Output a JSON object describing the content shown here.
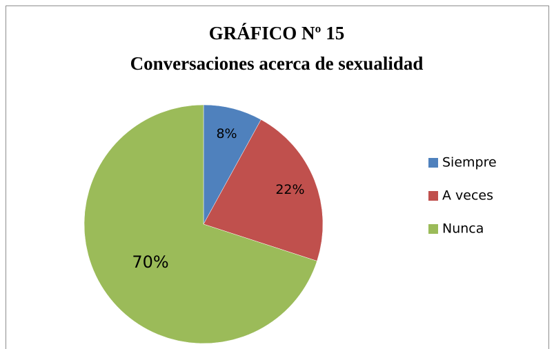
{
  "chart_data": {
    "type": "pie",
    "title": "GRÁFICO Nº 15",
    "subtitle": "Conversaciones acerca de sexualidad",
    "categories": [
      "Siempre",
      "A veces",
      "Nunca"
    ],
    "values": [
      8,
      22,
      70
    ],
    "value_labels": [
      "8%",
      "22%",
      "70%"
    ],
    "colors": [
      "#4f81bd",
      "#c0504d",
      "#9bbb59"
    ],
    "legend": "right"
  }
}
